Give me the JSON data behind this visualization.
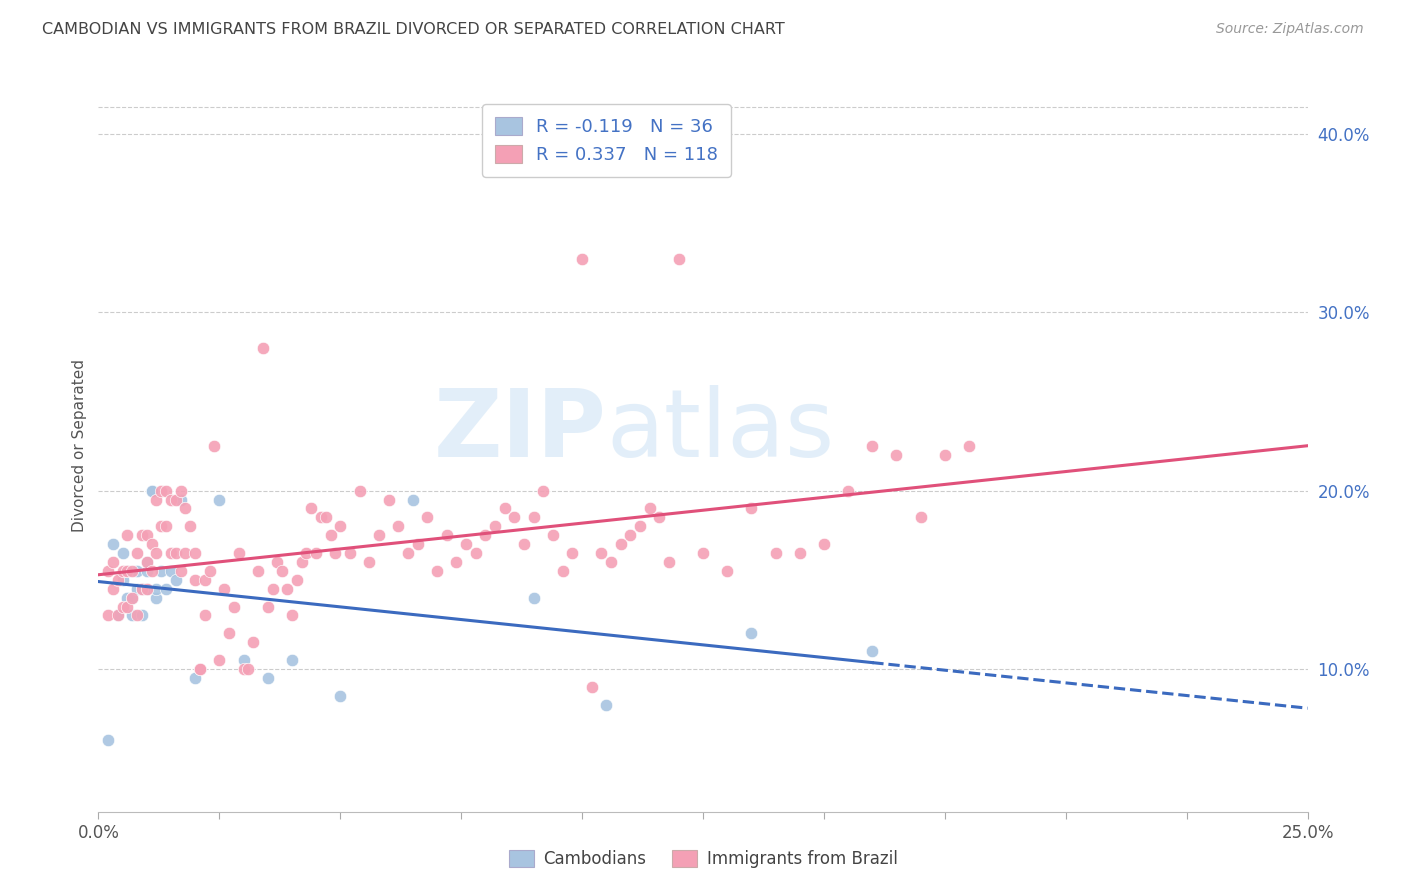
{
  "title": "CAMBODIAN VS IMMIGRANTS FROM BRAZIL DIVORCED OR SEPARATED CORRELATION CHART",
  "source": "Source: ZipAtlas.com",
  "ylabel": "Divorced or Separated",
  "ytick_labels": [
    "10.0%",
    "20.0%",
    "30.0%",
    "40.0%"
  ],
  "ytick_values": [
    0.1,
    0.2,
    0.3,
    0.4
  ],
  "xmin": 0.0,
  "xmax": 0.25,
  "ymin": 0.02,
  "ymax": 0.43,
  "cambodian_color": "#a8c4e0",
  "brazil_color": "#f4a0b5",
  "cambodian_line_color": "#3b6abf",
  "brazil_line_color": "#e0507a",
  "R_cambodian": -0.119,
  "N_cambodian": 36,
  "R_brazil": 0.337,
  "N_brazil": 118,
  "watermark_zip": "ZIP",
  "watermark_atlas": "atlas",
  "legend_label_cambodian": "Cambodians",
  "legend_label_brazil": "Immigrants from Brazil",
  "cambodian_x": [
    0.002,
    0.003,
    0.004,
    0.005,
    0.005,
    0.006,
    0.006,
    0.007,
    0.007,
    0.008,
    0.008,
    0.009,
    0.009,
    0.01,
    0.01,
    0.01,
    0.011,
    0.011,
    0.012,
    0.012,
    0.013,
    0.014,
    0.015,
    0.016,
    0.017,
    0.02,
    0.025,
    0.03,
    0.035,
    0.04,
    0.05,
    0.065,
    0.09,
    0.105,
    0.135,
    0.16
  ],
  "cambodian_y": [
    0.06,
    0.17,
    0.13,
    0.15,
    0.165,
    0.14,
    0.155,
    0.13,
    0.14,
    0.145,
    0.155,
    0.13,
    0.145,
    0.145,
    0.155,
    0.16,
    0.2,
    0.2,
    0.14,
    0.145,
    0.155,
    0.145,
    0.155,
    0.15,
    0.195,
    0.095,
    0.195,
    0.105,
    0.095,
    0.105,
    0.085,
    0.195,
    0.14,
    0.08,
    0.12,
    0.11
  ],
  "brazil_x": [
    0.002,
    0.002,
    0.003,
    0.003,
    0.004,
    0.004,
    0.005,
    0.005,
    0.006,
    0.006,
    0.006,
    0.007,
    0.007,
    0.008,
    0.008,
    0.009,
    0.009,
    0.01,
    0.01,
    0.01,
    0.011,
    0.011,
    0.012,
    0.012,
    0.013,
    0.013,
    0.014,
    0.014,
    0.015,
    0.015,
    0.016,
    0.016,
    0.017,
    0.017,
    0.018,
    0.018,
    0.019,
    0.02,
    0.02,
    0.021,
    0.021,
    0.022,
    0.022,
    0.023,
    0.024,
    0.025,
    0.026,
    0.027,
    0.028,
    0.029,
    0.03,
    0.031,
    0.032,
    0.033,
    0.034,
    0.035,
    0.036,
    0.037,
    0.038,
    0.039,
    0.04,
    0.041,
    0.042,
    0.043,
    0.044,
    0.045,
    0.046,
    0.047,
    0.048,
    0.049,
    0.05,
    0.052,
    0.054,
    0.056,
    0.058,
    0.06,
    0.062,
    0.064,
    0.066,
    0.068,
    0.07,
    0.072,
    0.074,
    0.076,
    0.078,
    0.08,
    0.082,
    0.084,
    0.086,
    0.088,
    0.09,
    0.092,
    0.094,
    0.096,
    0.098,
    0.1,
    0.102,
    0.104,
    0.106,
    0.108,
    0.11,
    0.112,
    0.114,
    0.116,
    0.118,
    0.12,
    0.125,
    0.13,
    0.135,
    0.14,
    0.145,
    0.15,
    0.155,
    0.16,
    0.165,
    0.17,
    0.175,
    0.18
  ],
  "brazil_y": [
    0.13,
    0.155,
    0.145,
    0.16,
    0.13,
    0.15,
    0.135,
    0.155,
    0.135,
    0.155,
    0.175,
    0.14,
    0.155,
    0.13,
    0.165,
    0.145,
    0.175,
    0.145,
    0.16,
    0.175,
    0.155,
    0.17,
    0.165,
    0.195,
    0.18,
    0.2,
    0.18,
    0.2,
    0.165,
    0.195,
    0.165,
    0.195,
    0.155,
    0.2,
    0.165,
    0.19,
    0.18,
    0.15,
    0.165,
    0.1,
    0.1,
    0.13,
    0.15,
    0.155,
    0.225,
    0.105,
    0.145,
    0.12,
    0.135,
    0.165,
    0.1,
    0.1,
    0.115,
    0.155,
    0.28,
    0.135,
    0.145,
    0.16,
    0.155,
    0.145,
    0.13,
    0.15,
    0.16,
    0.165,
    0.19,
    0.165,
    0.185,
    0.185,
    0.175,
    0.165,
    0.18,
    0.165,
    0.2,
    0.16,
    0.175,
    0.195,
    0.18,
    0.165,
    0.17,
    0.185,
    0.155,
    0.175,
    0.16,
    0.17,
    0.165,
    0.175,
    0.18,
    0.19,
    0.185,
    0.17,
    0.185,
    0.2,
    0.175,
    0.155,
    0.165,
    0.33,
    0.09,
    0.165,
    0.16,
    0.17,
    0.175,
    0.18,
    0.19,
    0.185,
    0.16,
    0.33,
    0.165,
    0.155,
    0.19,
    0.165,
    0.165,
    0.17,
    0.2,
    0.225,
    0.22,
    0.185,
    0.22,
    0.225
  ]
}
